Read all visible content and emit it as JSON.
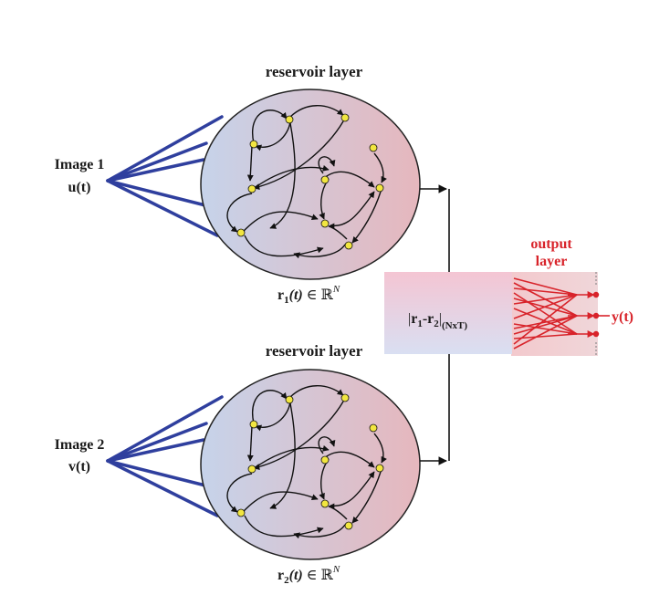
{
  "colors": {
    "input_edge": "#2f3f9e",
    "reservoir_left": "#c6d3ea",
    "reservoir_right": "#e6b7bd",
    "node_fill": "#f2e640",
    "arrow": "#111111",
    "output_red": "#d8232a",
    "box_top": "#f4c5d3",
    "box_bottom": "#d9dff2"
  },
  "reservoir_top": {
    "title": "reservoir layer",
    "input_label": "Image 1",
    "input_signal": "u(t)",
    "state_var": "r",
    "state_sub": "1",
    "state_t": "(t)",
    "state_in": "∈",
    "state_space": "ℝ",
    "state_sup": "N"
  },
  "reservoir_bottom": {
    "title": "reservoir layer",
    "input_label": "Image 2",
    "input_signal": "v(t)",
    "state_var": "r",
    "state_sub": "2",
    "state_t": "(t)",
    "state_in": "∈",
    "state_space": "ℝ",
    "state_sup": "N"
  },
  "difference_box": {
    "bar_open": "|",
    "r1": "r",
    "r1_sub": "1",
    "minus": "-",
    "r2": "r",
    "r2_sub": "2",
    "bar_close": "|",
    "dims": "(NxT)"
  },
  "output": {
    "title_line1": "output",
    "title_line2": "layer",
    "signal": "y(t)"
  }
}
